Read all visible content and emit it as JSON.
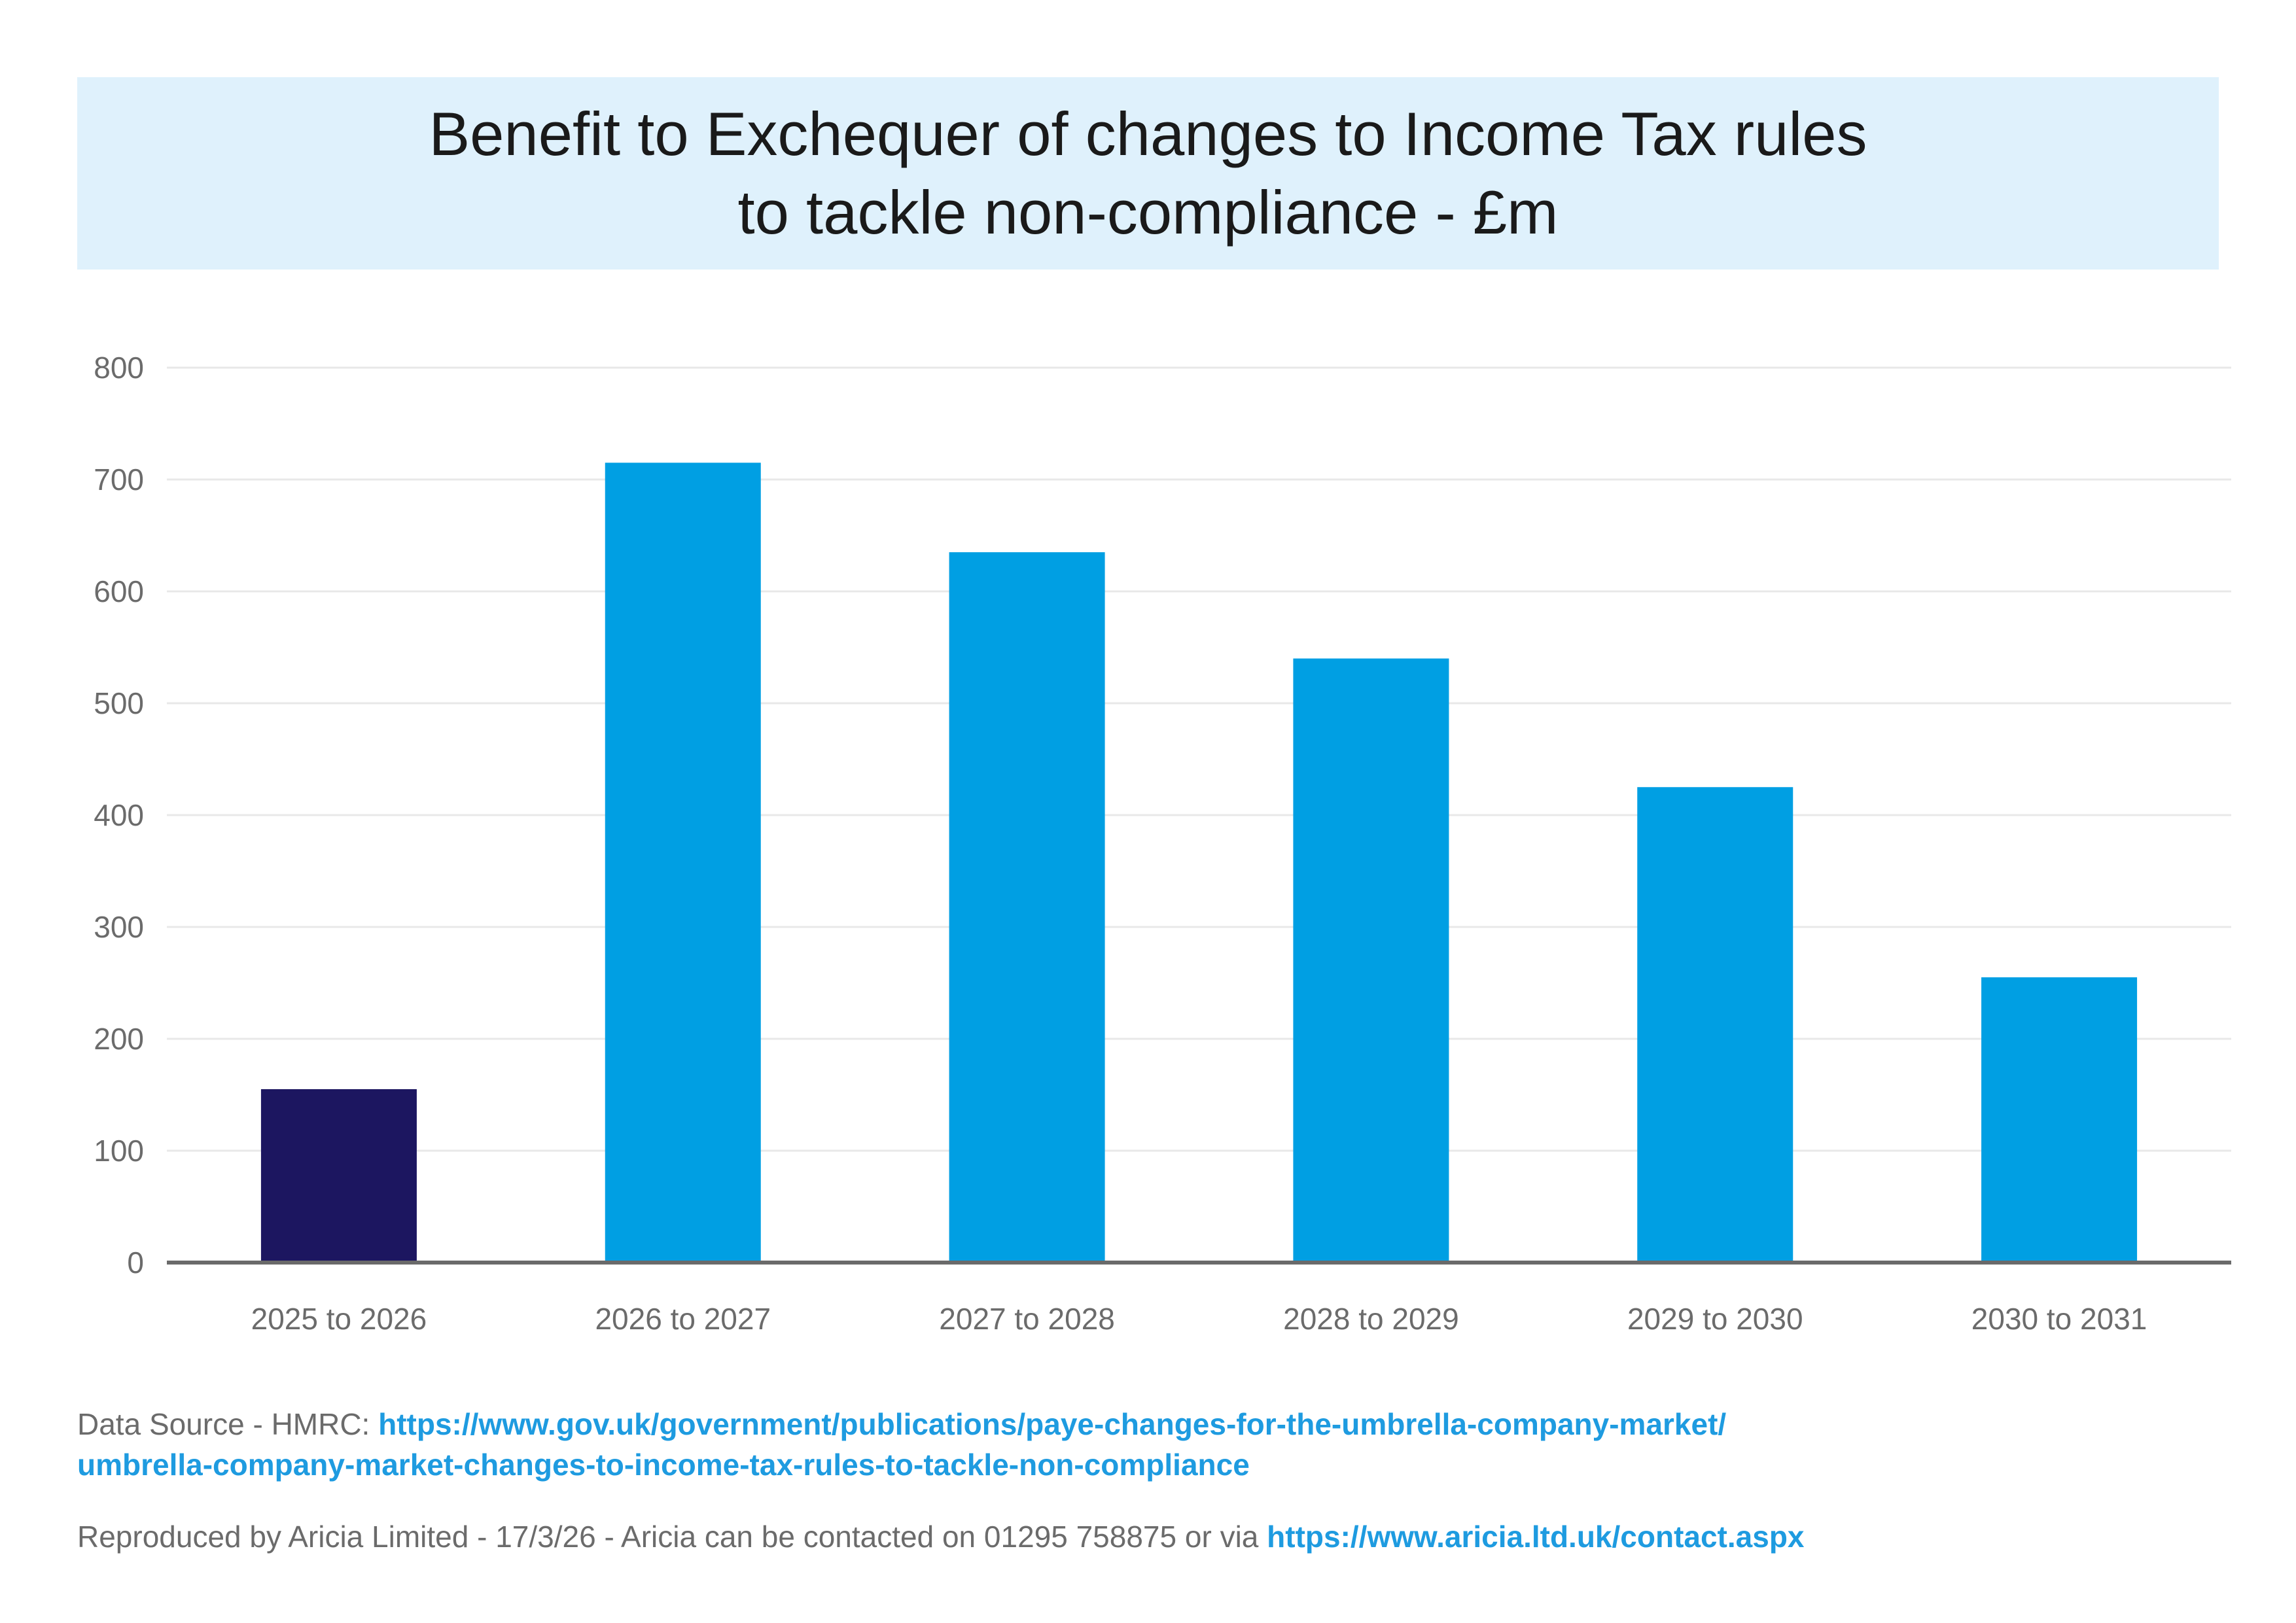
{
  "title": {
    "line1": "Benefit to Exchequer of changes to Income Tax rules",
    "line2": "to tackle non-compliance - £m"
  },
  "chart_data": {
    "type": "bar",
    "title": "Benefit to Exchequer of changes to Income Tax rules to tackle non-compliance - £m",
    "xlabel": "",
    "ylabel": "",
    "categories": [
      "2025 to 2026",
      "2026 to 2027",
      "2027 to 2028",
      "2028 to 2029",
      "2029 to 2030",
      "2030 to 2031"
    ],
    "values": [
      155,
      715,
      635,
      540,
      425,
      255
    ],
    "ylim": [
      0,
      800
    ],
    "yticks": [
      "0",
      "100",
      "200",
      "300",
      "400",
      "500",
      "600",
      "700",
      "800"
    ],
    "bar_colors": [
      "#1c1660",
      "#009fe3",
      "#009fe3",
      "#009fe3",
      "#009fe3",
      "#009fe3"
    ],
    "gridlines": true,
    "legend": "none"
  },
  "colors": {
    "title_background": "#dff1fc",
    "axis_line": "#6a6a6a",
    "gridline": "#e8e8e8",
    "link": "#1e9be0"
  },
  "footer": {
    "source_prefix": "Data Source - HMRC: ",
    "source_url_line1": "https://www.gov.uk/government/publications/paye-changes-for-the-umbrella-company-market/",
    "source_url_line2": "umbrella-company-market-changes-to-income-tax-rules-to-tackle-non-compliance",
    "reproduced_text": "Reproduced by Aricia Limited - 17/3/26 - Aricia can be contacted on 01295 758875 or via ",
    "contact_url": "https://www.aricia.ltd.uk/contact.aspx"
  }
}
